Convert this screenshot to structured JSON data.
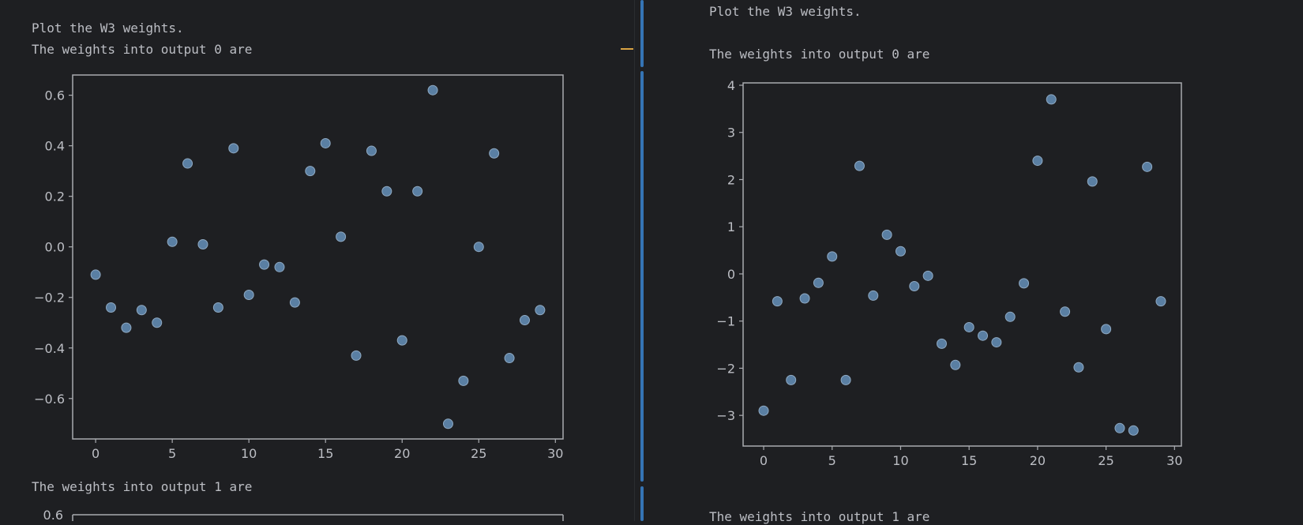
{
  "left_output": {
    "lines": [
      "Plot the W3 weights.",
      "The weights into output 0 are"
    ],
    "next_label": "The weights into output 1 are",
    "next_plot_tick": "0.6"
  },
  "right_output": {
    "lines": [
      "Plot the W3 weights.",
      "The weights into output 0 are"
    ],
    "next_label": "The weights into output 1 are"
  },
  "colors": {
    "marker": "#5a7fa3",
    "marker_edge": "#8fa9c2",
    "axes_bg": "#1e1f22",
    "axes_frame": "#a9abb0",
    "text": "#bcbec4",
    "active_divider": "#3574b5",
    "warning_dash": "#d9a343"
  },
  "chart_data": [
    {
      "type": "scatter",
      "title": "",
      "xlabel": "",
      "ylabel": "",
      "grid": false,
      "xlim": [
        -1.5,
        30.5
      ],
      "ylim": [
        -0.76,
        0.68
      ],
      "xticks": [
        0,
        5,
        10,
        15,
        20,
        25,
        30
      ],
      "yticks": [
        0.6,
        0.4,
        0.2,
        0.0,
        -0.2,
        -0.4,
        -0.6
      ],
      "ytick_labels": [
        "0.6",
        "0.4",
        "0.2",
        "0.0",
        "−0.2",
        "−0.4",
        "−0.6"
      ],
      "x": [
        0,
        1,
        2,
        3,
        4,
        5,
        6,
        7,
        8,
        9,
        10,
        11,
        12,
        13,
        14,
        15,
        16,
        17,
        18,
        19,
        20,
        21,
        22,
        23,
        24,
        25,
        26,
        27,
        28,
        29
      ],
      "y": [
        -0.11,
        -0.24,
        -0.32,
        -0.25,
        -0.3,
        0.02,
        0.33,
        0.01,
        -0.24,
        0.39,
        -0.19,
        -0.07,
        -0.08,
        -0.22,
        0.3,
        0.41,
        0.04,
        -0.43,
        0.38,
        0.22,
        -0.37,
        0.22,
        0.62,
        -0.7,
        -0.53,
        0.0,
        0.37,
        -0.44,
        -0.29,
        -0.25
      ]
    },
    {
      "type": "scatter",
      "title": "",
      "xlabel": "",
      "ylabel": "",
      "grid": false,
      "xlim": [
        -1.5,
        30.5
      ],
      "ylim": [
        -3.65,
        4.05
      ],
      "xticks": [
        0,
        5,
        10,
        15,
        20,
        25,
        30
      ],
      "yticks": [
        4,
        3,
        2,
        1,
        0,
        -1,
        -2,
        -3
      ],
      "ytick_labels": [
        "4",
        "3",
        "2",
        "1",
        "0",
        "−1",
        "−2",
        "−3"
      ],
      "x": [
        0,
        1,
        2,
        3,
        4,
        5,
        6,
        7,
        8,
        9,
        10,
        11,
        12,
        13,
        14,
        15,
        16,
        17,
        18,
        19,
        20,
        21,
        22,
        23,
        24,
        25,
        26,
        27,
        28,
        29
      ],
      "y": [
        -2.9,
        -0.58,
        -2.25,
        -0.52,
        -0.19,
        0.37,
        -2.25,
        2.29,
        -0.46,
        0.83,
        0.48,
        -0.26,
        -0.04,
        -1.48,
        -1.93,
        -1.13,
        -1.31,
        -1.45,
        -0.91,
        -0.2,
        2.4,
        3.7,
        -0.8,
        -1.98,
        1.96,
        -1.17,
        -3.27,
        -3.32,
        2.27,
        -0.58
      ]
    }
  ]
}
